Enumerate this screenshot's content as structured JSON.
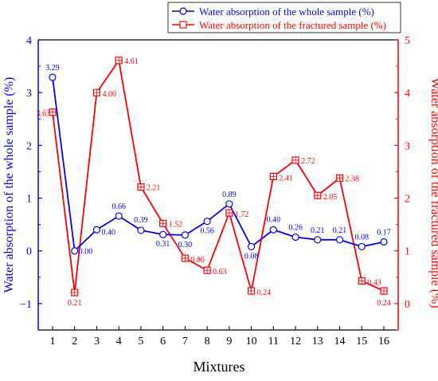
{
  "chart_data": {
    "type": "line",
    "title": "",
    "xlabel": "Mixtures",
    "ylabel_left": "Water absorption of the whole sample (%)",
    "ylabel_right": "Water absorption of the fractured sample (%)",
    "categories": [
      "1",
      "2",
      "3",
      "4",
      "5",
      "6",
      "7",
      "8",
      "9",
      "10",
      "11",
      "12",
      "13",
      "14",
      "15",
      "16"
    ],
    "ylim_left": [
      -1.5,
      4
    ],
    "ylim_right": [
      -0.5,
      5
    ],
    "yticks_left": [
      -1,
      0,
      1,
      2,
      3,
      4
    ],
    "yticks_right": [
      0,
      1,
      2,
      3,
      4,
      5
    ],
    "grid": false,
    "legend_position": "top",
    "series": [
      {
        "name": "Water absorption of the whole sample (%)",
        "axis": "left",
        "color": "#0000ff",
        "marker": "circle",
        "values": [
          3.29,
          0.0,
          0.4,
          0.66,
          0.39,
          0.31,
          0.3,
          0.56,
          0.89,
          0.08,
          0.4,
          0.26,
          0.21,
          0.21,
          0.08,
          0.17
        ],
        "labels": [
          "3.29",
          "0.00",
          "0.40",
          "0.66",
          "0.39",
          "0.31",
          "0.30",
          "0.56",
          "0.89",
          "0.08",
          "0.40",
          "0.26",
          "0.21",
          "0.21",
          "0.08",
          "0.17"
        ]
      },
      {
        "name": "Water absorption of the fractured sample (%)",
        "axis": "right",
        "color": "#ff0000",
        "marker": "square",
        "values": [
          3.63,
          0.21,
          4.0,
          4.61,
          2.21,
          1.52,
          0.86,
          0.63,
          1.72,
          0.24,
          2.41,
          2.72,
          2.05,
          2.38,
          0.43,
          0.24
        ],
        "labels": [
          "3.63",
          "0.21",
          "4.00",
          "4.61",
          "2.21",
          "1.52",
          "0.86",
          "0.63",
          "1.72",
          "0.24",
          "2.41",
          "2.72",
          "2.05",
          "2.38",
          "0.43",
          "0.24"
        ]
      }
    ]
  }
}
